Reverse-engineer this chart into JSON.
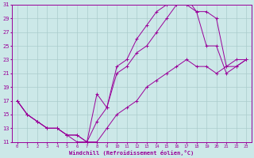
{
  "xlabel": "Windchill (Refroidissement éolien,°C)",
  "bg_color": "#cce8e8",
  "line_color": "#990099",
  "grid_color": "#aacccc",
  "xlim": [
    -0.5,
    23.5
  ],
  "ylim": [
    11,
    31
  ],
  "xticks": [
    0,
    1,
    2,
    3,
    4,
    5,
    6,
    7,
    8,
    9,
    10,
    11,
    12,
    13,
    14,
    15,
    16,
    17,
    18,
    19,
    20,
    21,
    22,
    23
  ],
  "yticks": [
    11,
    13,
    15,
    17,
    19,
    21,
    23,
    25,
    27,
    29,
    31
  ],
  "line1_x": [
    0,
    1,
    2,
    3,
    4,
    5,
    6,
    7,
    8,
    9,
    10,
    11,
    12,
    13,
    14,
    15,
    16,
    17,
    18,
    19,
    20,
    21,
    22,
    23
  ],
  "line1_y": [
    17,
    15,
    14,
    13,
    13,
    12,
    12,
    11,
    14,
    16,
    22,
    23,
    26,
    28,
    30,
    31,
    32,
    32,
    30,
    30,
    29,
    22,
    23,
    23
  ],
  "line2_x": [
    0,
    1,
    2,
    3,
    4,
    5,
    6,
    7,
    8,
    9,
    10,
    11,
    12,
    13,
    14,
    15,
    16,
    17,
    18,
    19,
    20,
    21,
    22,
    23
  ],
  "line2_y": [
    17,
    15,
    14,
    13,
    13,
    12,
    12,
    11,
    18,
    16,
    21,
    22,
    24,
    25,
    27,
    29,
    31,
    31,
    30,
    25,
    25,
    21,
    22,
    23
  ],
  "line3_x": [
    0,
    1,
    2,
    3,
    4,
    5,
    6,
    7,
    8,
    9,
    10,
    11,
    12,
    13,
    14,
    15,
    16,
    17,
    18,
    19,
    20,
    21,
    22,
    23
  ],
  "line3_y": [
    17,
    15,
    14,
    13,
    13,
    12,
    11,
    11,
    11,
    13,
    15,
    16,
    17,
    19,
    20,
    21,
    22,
    23,
    22,
    22,
    21,
    22,
    22,
    23
  ]
}
